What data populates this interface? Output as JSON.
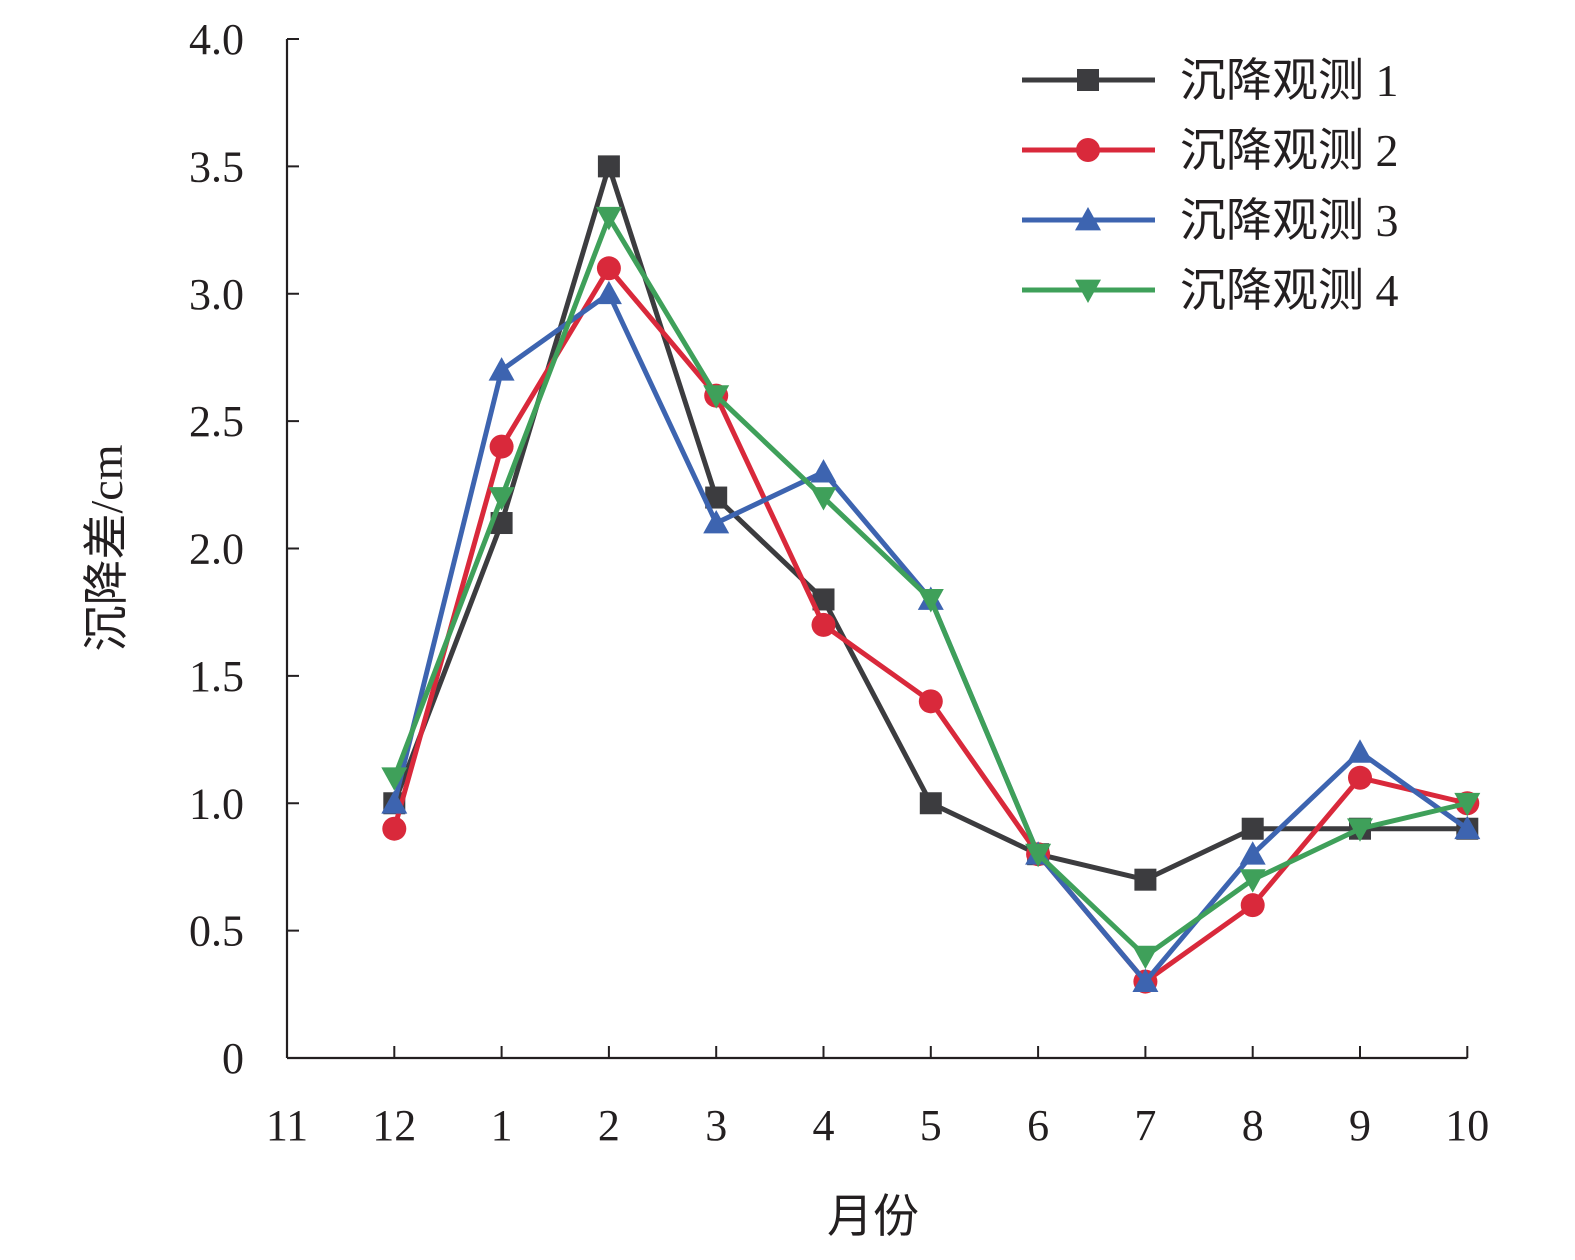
{
  "chart_data": {
    "type": "line",
    "title": "",
    "xlabel": "月份",
    "ylabel": "沉降差/cm",
    "categories": [
      "11",
      "12",
      "1",
      "2",
      "3",
      "4",
      "5",
      "6",
      "7",
      "8",
      "9",
      "10"
    ],
    "y_tick_labels": [
      "0",
      "0.5",
      "1.0",
      "1.5",
      "2.0",
      "2.5",
      "3.0",
      "3.5",
      "4.0"
    ],
    "ylim": [
      0,
      4.0
    ],
    "grid": false,
    "legend_position": "top-right",
    "series": [
      {
        "name": "沉降观测 1",
        "color": "#3c3c3f",
        "marker": "square",
        "values": [
          null,
          1.0,
          2.1,
          3.5,
          2.2,
          1.8,
          1.0,
          0.8,
          0.7,
          0.9,
          0.9,
          0.9
        ]
      },
      {
        "name": "沉降观测 2",
        "color": "#d9293b",
        "marker": "circle",
        "values": [
          null,
          0.9,
          2.4,
          3.1,
          2.6,
          1.7,
          1.4,
          0.8,
          0.3,
          0.6,
          1.1,
          1.0
        ]
      },
      {
        "name": "沉降观测 3",
        "color": "#3d64b0",
        "marker": "triangle-up",
        "values": [
          null,
          1.0,
          2.7,
          3.0,
          2.1,
          2.3,
          1.8,
          0.8,
          0.3,
          0.8,
          1.2,
          0.9
        ]
      },
      {
        "name": "沉降观测 4",
        "color": "#3fa05a",
        "marker": "triangle-down",
        "values": [
          null,
          1.1,
          2.2,
          3.3,
          2.6,
          2.2,
          1.8,
          0.8,
          0.4,
          0.7,
          0.9,
          1.0
        ]
      }
    ]
  }
}
